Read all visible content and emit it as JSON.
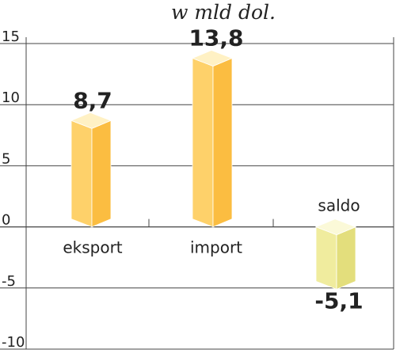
{
  "chart_data": {
    "type": "bar",
    "subtitle": "w mld dol.",
    "categories": [
      "eksport",
      "import",
      "saldo"
    ],
    "values": [
      8.7,
      13.8,
      -5.1
    ],
    "value_labels": [
      "8,7",
      "13,8",
      "-5,1"
    ],
    "ylim": [
      -10,
      15
    ],
    "yticks": [
      15,
      10,
      5,
      0,
      -5,
      -10
    ],
    "ytick_labels": [
      "15",
      "10",
      "5",
      "0",
      "-5",
      "-10"
    ],
    "grid": true,
    "colors": {
      "front": [
        "#fed16a",
        "#fed16a",
        "#f0ec9e"
      ],
      "side": [
        "#fbbd41",
        "#fbbd41",
        "#e3de7c"
      ],
      "top": [
        "#fff1c4",
        "#fff1c4",
        "#fbf9d8"
      ]
    }
  }
}
